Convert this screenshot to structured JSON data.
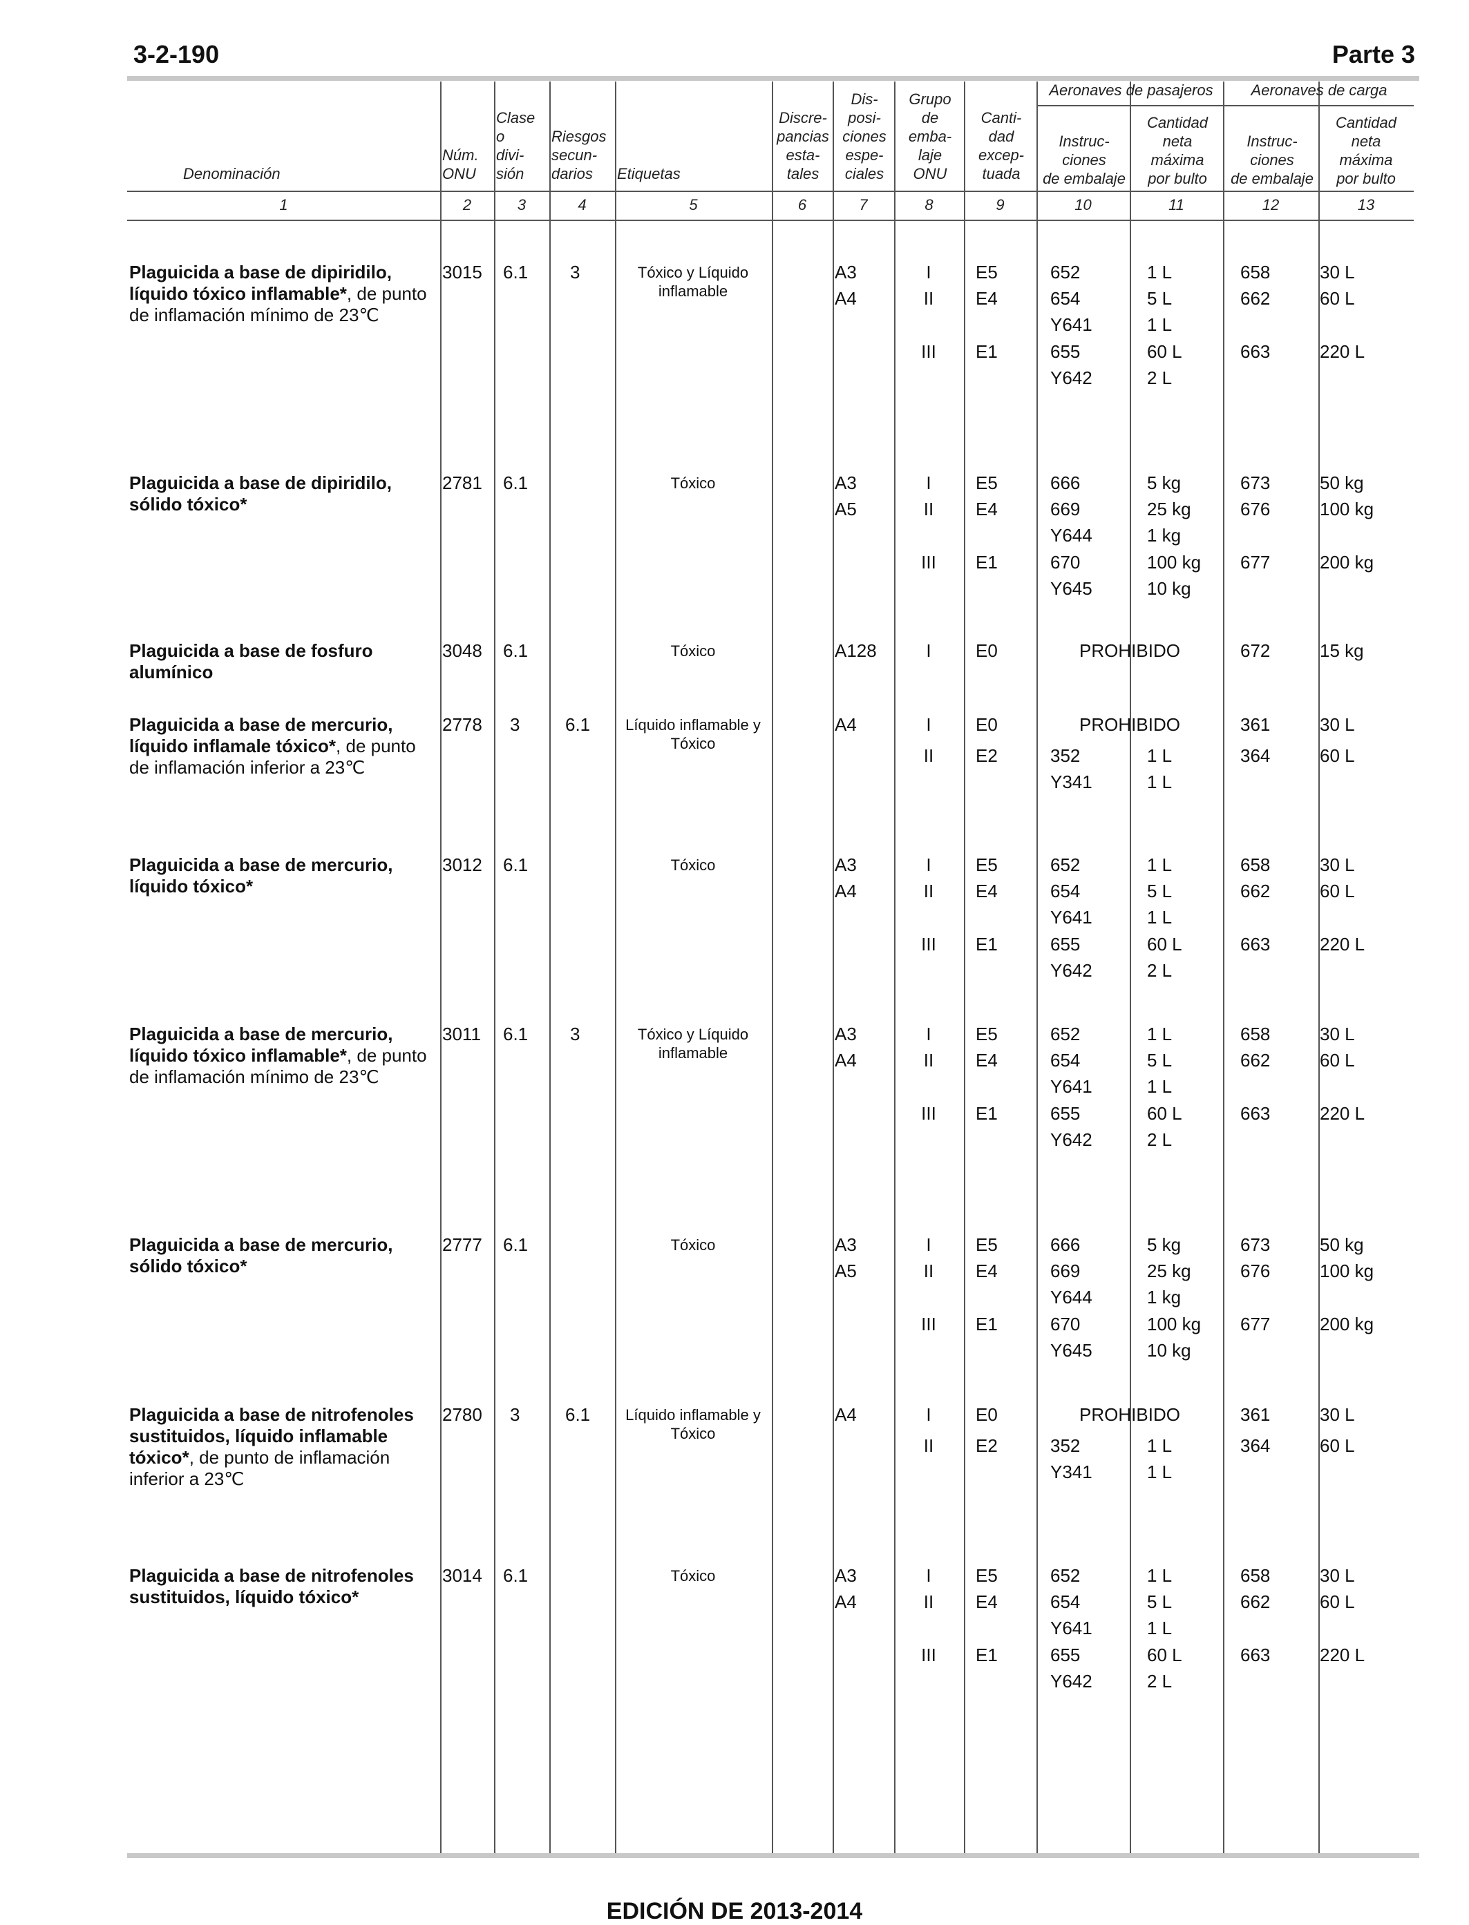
{
  "page": {
    "number": "3-2-190",
    "part": "Parte 3",
    "footer": "EDICIÓN DE 2013-2014"
  },
  "headers": {
    "denominacion": "Denominación",
    "num_onu": [
      "Núm.",
      "ONU"
    ],
    "clase": [
      "Clase",
      "o",
      "divi-",
      "sión"
    ],
    "riesgos": [
      "Riesgos",
      "secun-",
      "darios"
    ],
    "etiquetas": "Etiquetas",
    "discrepancias": [
      "Discre-",
      "pancias",
      "esta-",
      "tales"
    ],
    "disposiciones": [
      "Dis-",
      "posi-",
      "ciones",
      "espe-",
      "ciales"
    ],
    "grupo": [
      "Grupo",
      "de",
      "emba-",
      "laje",
      "ONU"
    ],
    "cantidad": [
      "Canti-",
      "dad",
      "excep-",
      "tuada"
    ],
    "pasajeros": "Aeronaves de pasajeros",
    "carga": "Aeronaves de carga",
    "instrucciones": [
      "Instruc-",
      "ciones",
      "de embalaje"
    ],
    "cantidad_neta": [
      "Cantidad",
      "neta",
      "máxima",
      "por bulto"
    ],
    "column_numbers": [
      "1",
      "2",
      "3",
      "4",
      "5",
      "6",
      "7",
      "8",
      "9",
      "10",
      "11",
      "12",
      "13"
    ]
  },
  "entries": [
    {
      "name_bold": "Plaguicida a base de dipiridilo, líquido tóxico inflamable*",
      "name_rest": ", de punto de inflamación mínimo de 23℃",
      "un": "3015",
      "clase": "6.1",
      "riesgo": "3",
      "etiqueta": "Tóxico y Líquido inflamable",
      "disp": [
        "A3",
        "A4"
      ],
      "rows": [
        {
          "grupo": "I",
          "cant": "E5",
          "pi": "652",
          "pq": "1 L",
          "ci": "658",
          "cq": "30 L"
        },
        {
          "grupo": "II",
          "cant": "E4",
          "pi": "654",
          "pq": "5 L",
          "ci": "662",
          "cq": "60 L"
        },
        {
          "grupo": "",
          "cant": "",
          "pi": "Y641",
          "pq": "1 L",
          "ci": "",
          "cq": ""
        },
        {
          "grupo": "III",
          "cant": "E1",
          "pi": "655",
          "pq": "60 L",
          "ci": "663",
          "cq": "220 L"
        },
        {
          "grupo": "",
          "cant": "",
          "pi": "Y642",
          "pq": "2 L",
          "ci": "",
          "cq": ""
        }
      ]
    },
    {
      "name_bold": "Plaguicida a base de dipiridilo, sólido tóxico*",
      "name_rest": "",
      "un": "2781",
      "clase": "6.1",
      "riesgo": "",
      "etiqueta": "Tóxico",
      "disp": [
        "A3",
        "A5"
      ],
      "rows": [
        {
          "grupo": "I",
          "cant": "E5",
          "pi": "666",
          "pq": "5 kg",
          "ci": "673",
          "cq": "50 kg"
        },
        {
          "grupo": "II",
          "cant": "E4",
          "pi": "669",
          "pq": "25 kg",
          "ci": "676",
          "cq": "100 kg"
        },
        {
          "grupo": "",
          "cant": "",
          "pi": "Y644",
          "pq": "1 kg",
          "ci": "",
          "cq": ""
        },
        {
          "grupo": "III",
          "cant": "E1",
          "pi": "670",
          "pq": "100 kg",
          "ci": "677",
          "cq": "200 kg"
        },
        {
          "grupo": "",
          "cant": "",
          "pi": "Y645",
          "pq": "10 kg",
          "ci": "",
          "cq": ""
        }
      ]
    },
    {
      "name_bold": "Plaguicida a base de fosfuro alumínico",
      "name_rest": "",
      "un": "3048",
      "clase": "6.1",
      "riesgo": "",
      "etiqueta": "Tóxico",
      "disp": [
        "A128"
      ],
      "rows": [
        {
          "grupo": "I",
          "cant": "E0",
          "prohibido": "PROHIBIDO",
          "ci": "672",
          "cq": "15 kg"
        }
      ]
    },
    {
      "name_bold": "Plaguicida a base de mercurio, líquido inflamale tóxico*",
      "name_rest": ", de punto de inflamación inferior a 23℃",
      "un": "2778",
      "clase": "3",
      "riesgo": "6.1",
      "etiqueta": "Líquido inflamable y Tóxico",
      "disp": [
        "A4"
      ],
      "rows": [
        {
          "grupo": "I",
          "cant": "E0",
          "prohibido": "PROHIBIDO",
          "ci": "361",
          "cq": "30 L"
        },
        {
          "grupo": "II",
          "cant": "E2",
          "pi": "352",
          "pq": "1 L",
          "ci": "364",
          "cq": "60 L"
        },
        {
          "grupo": "",
          "cant": "",
          "pi": "Y341",
          "pq": "1 L",
          "ci": "",
          "cq": ""
        }
      ]
    },
    {
      "name_bold": "Plaguicida a base de mercurio, líquido tóxico*",
      "name_rest": "",
      "un": "3012",
      "clase": "6.1",
      "riesgo": "",
      "etiqueta": "Tóxico",
      "disp": [
        "A3",
        "A4"
      ],
      "rows": [
        {
          "grupo": "I",
          "cant": "E5",
          "pi": "652",
          "pq": "1 L",
          "ci": "658",
          "cq": "30 L"
        },
        {
          "grupo": "II",
          "cant": "E4",
          "pi": "654",
          "pq": "5 L",
          "ci": "662",
          "cq": "60 L"
        },
        {
          "grupo": "",
          "cant": "",
          "pi": "Y641",
          "pq": "1 L",
          "ci": "",
          "cq": ""
        },
        {
          "grupo": "III",
          "cant": "E1",
          "pi": "655",
          "pq": "60 L",
          "ci": "663",
          "cq": "220 L"
        },
        {
          "grupo": "",
          "cant": "",
          "pi": "Y642",
          "pq": "2 L",
          "ci": "",
          "cq": ""
        }
      ]
    },
    {
      "name_bold": "Plaguicida a base de mercurio, líquido tóxico inflamable*",
      "name_rest": ", de punto de inflamación mínimo de 23℃",
      "un": "3011",
      "clase": "6.1",
      "riesgo": "3",
      "etiqueta": "Tóxico y Líquido inflamable",
      "disp": [
        "A3",
        "A4"
      ],
      "rows": [
        {
          "grupo": "I",
          "cant": "E5",
          "pi": "652",
          "pq": "1 L",
          "ci": "658",
          "cq": "30 L"
        },
        {
          "grupo": "II",
          "cant": "E4",
          "pi": "654",
          "pq": "5 L",
          "ci": "662",
          "cq": "60 L"
        },
        {
          "grupo": "",
          "cant": "",
          "pi": "Y641",
          "pq": "1 L",
          "ci": "",
          "cq": ""
        },
        {
          "grupo": "III",
          "cant": "E1",
          "pi": "655",
          "pq": "60 L",
          "ci": "663",
          "cq": "220 L"
        },
        {
          "grupo": "",
          "cant": "",
          "pi": "Y642",
          "pq": "2 L",
          "ci": "",
          "cq": ""
        }
      ]
    },
    {
      "name_bold": "Plaguicida a base de mercurio, sólido tóxico*",
      "name_rest": "",
      "un": "2777",
      "clase": "6.1",
      "riesgo": "",
      "etiqueta": "Tóxico",
      "disp": [
        "A3",
        "A5"
      ],
      "rows": [
        {
          "grupo": "I",
          "cant": "E5",
          "pi": "666",
          "pq": "5 kg",
          "ci": "673",
          "cq": "50 kg"
        },
        {
          "grupo": "II",
          "cant": "E4",
          "pi": "669",
          "pq": "25 kg",
          "ci": "676",
          "cq": "100 kg"
        },
        {
          "grupo": "",
          "cant": "",
          "pi": "Y644",
          "pq": "1 kg",
          "ci": "",
          "cq": ""
        },
        {
          "grupo": "III",
          "cant": "E1",
          "pi": "670",
          "pq": "100 kg",
          "ci": "677",
          "cq": "200 kg"
        },
        {
          "grupo": "",
          "cant": "",
          "pi": "Y645",
          "pq": "10 kg",
          "ci": "",
          "cq": ""
        }
      ]
    },
    {
      "name_bold": "Plaguicida a base de nitrofenoles sustituidos, líquido inflamable tóxico*",
      "name_rest": ", de punto de inflamación inferior a 23℃",
      "un": "2780",
      "clase": "3",
      "riesgo": "6.1",
      "etiqueta": "Líquido inflamable y Tóxico",
      "disp": [
        "A4"
      ],
      "rows": [
        {
          "grupo": "I",
          "cant": "E0",
          "prohibido": "PROHIBIDO",
          "ci": "361",
          "cq": "30 L"
        },
        {
          "grupo": "II",
          "cant": "E2",
          "pi": "352",
          "pq": "1 L",
          "ci": "364",
          "cq": "60 L"
        },
        {
          "grupo": "",
          "cant": "",
          "pi": "Y341",
          "pq": "1 L",
          "ci": "",
          "cq": ""
        }
      ]
    },
    {
      "name_bold": "Plaguicida a base de nitrofenoles sustituidos, líquido tóxico*",
      "name_rest": "",
      "un": "3014",
      "clase": "6.1",
      "riesgo": "",
      "etiqueta": "Tóxico",
      "disp": [
        "A3",
        "A4"
      ],
      "rows": [
        {
          "grupo": "I",
          "cant": "E5",
          "pi": "652",
          "pq": "1 L",
          "ci": "658",
          "cq": "30 L"
        },
        {
          "grupo": "II",
          "cant": "E4",
          "pi": "654",
          "pq": "5 L",
          "ci": "662",
          "cq": "60 L"
        },
        {
          "grupo": "",
          "cant": "",
          "pi": "Y641",
          "pq": "1 L",
          "ci": "",
          "cq": ""
        },
        {
          "grupo": "III",
          "cant": "E1",
          "pi": "655",
          "pq": "60 L",
          "ci": "663",
          "cq": "220 L"
        },
        {
          "grupo": "",
          "cant": "",
          "pi": "Y642",
          "pq": "2 L",
          "ci": "",
          "cq": ""
        }
      ]
    }
  ]
}
